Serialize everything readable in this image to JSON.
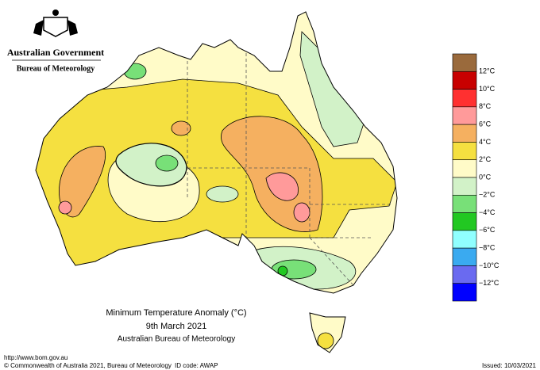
{
  "header": {
    "government": "Australian Government",
    "bureau": "Bureau of Meteorology"
  },
  "title": {
    "main": "Minimum Temperature Anomaly (°C)",
    "date": "9th March 2021",
    "source": "Australian Bureau of Meteorology"
  },
  "footer": {
    "url": "http://www.bom.gov.au",
    "copyright": "© Commonwealth of Australia 2021, Bureau of Meteorology",
    "id_code": "ID code: AWAP",
    "issued": "Issued: 10/03/2021"
  },
  "legend": {
    "colors": [
      "#9a6a3c",
      "#c80000",
      "#ff3030",
      "#ff9a9a",
      "#f5b060",
      "#f5e040",
      "#fffbc8",
      "#d2f2c8",
      "#78e078",
      "#22c822",
      "#90ffff",
      "#3aaaf0",
      "#6a6af0",
      "#0000ff"
    ],
    "labels": [
      "12°C",
      "10°C",
      "8°C",
      "6°C",
      "4°C",
      "2°C",
      "0°C",
      "−2°C",
      "−4°C",
      "−6°C",
      "−8°C",
      "−10°C",
      "−12°C"
    ]
  }
}
